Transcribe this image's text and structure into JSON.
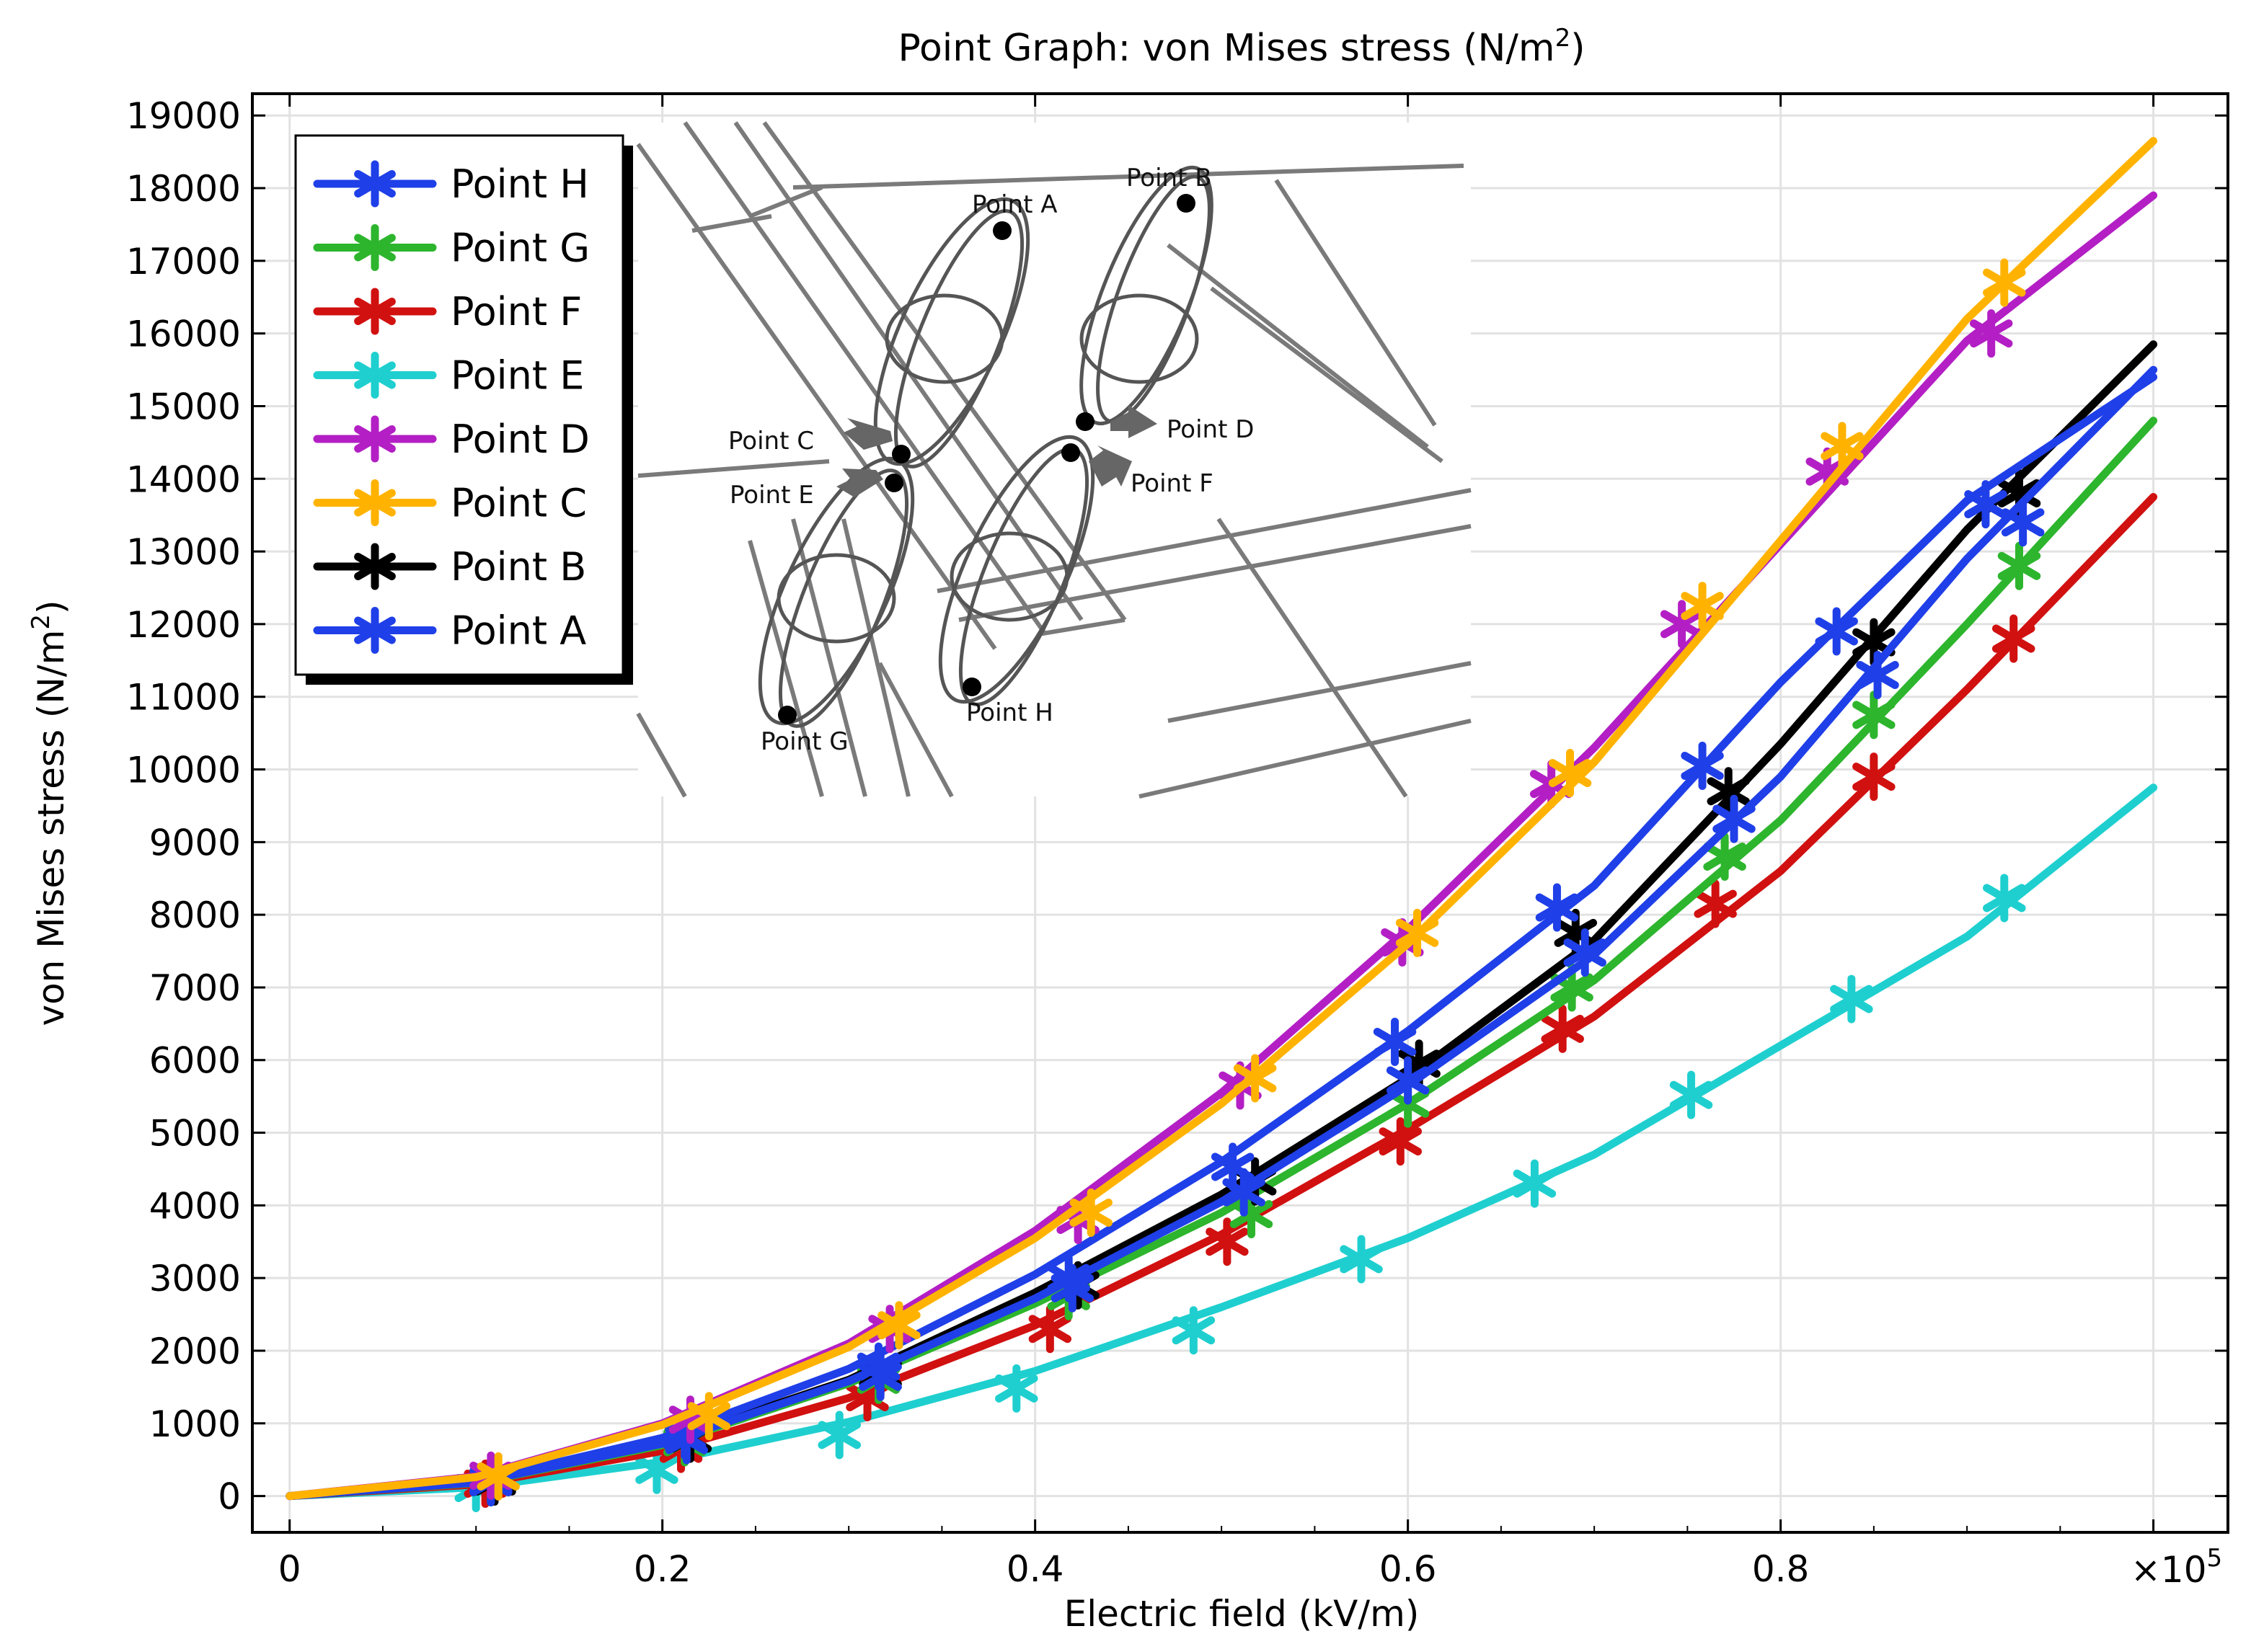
{
  "chart_data": {
    "type": "line",
    "title_prefix": "Point Graph: von Mises stress (N/m",
    "title_sup": "2",
    "title_suffix": ")",
    "xlabel": "Electric field (kV/m)",
    "ylabel_prefix": "von Mises stress (N/m",
    "ylabel_sup": "2",
    "ylabel_suffix": ")",
    "x_multiplier_base": "×10",
    "x_multiplier_exp": "5",
    "xlim": [
      -0.02,
      1.04
    ],
    "ylim": [
      -500,
      19300
    ],
    "xticks": [
      0,
      0.2,
      0.4,
      0.6,
      0.8,
      1.0
    ],
    "xtick_labels": [
      "0",
      "0.2",
      "0.4",
      "0.6",
      "0.8",
      ""
    ],
    "yticks": [
      0,
      1000,
      2000,
      3000,
      4000,
      5000,
      6000,
      7000,
      8000,
      9000,
      10000,
      11000,
      12000,
      13000,
      14000,
      15000,
      16000,
      17000,
      18000,
      19000
    ],
    "grid": true,
    "legend_position": "top-left",
    "series": [
      {
        "name": "Point H",
        "color": "#1f3fe8",
        "x": [
          0,
          0.1,
          0.2,
          0.3,
          0.4,
          0.5,
          0.6,
          0.7,
          0.8,
          0.9,
          1.0
        ],
        "values": [
          0,
          200,
          800,
          1750,
          3050,
          4600,
          6400,
          8400,
          11200,
          13700,
          15400
        ],
        "markers_x": [
          0.108,
          0.212,
          0.316,
          0.418,
          0.506,
          0.593,
          0.68,
          0.758,
          0.83,
          0.91
        ],
        "markers_y": [
          210,
          830,
          1780,
          3000,
          4530,
          6250,
          8100,
          10050,
          11900,
          13650
        ]
      },
      {
        "name": "Point G",
        "color": "#2db52d",
        "x": [
          0,
          0.1,
          0.2,
          0.3,
          0.4,
          0.5,
          0.6,
          0.7,
          0.8,
          0.9,
          1.0
        ],
        "values": [
          0,
          180,
          700,
          1550,
          2650,
          3900,
          5400,
          7100,
          9300,
          12000,
          14800
        ],
        "markers_x": [
          0.108,
          0.212,
          0.316,
          0.418,
          0.516,
          0.6,
          0.688,
          0.77,
          0.85,
          0.928
        ],
        "markers_y": [
          190,
          740,
          1600,
          2750,
          3880,
          5400,
          7000,
          8800,
          10750,
          12800
        ]
      },
      {
        "name": "Point F",
        "color": "#d11010",
        "x": [
          0,
          0.1,
          0.2,
          0.3,
          0.4,
          0.5,
          0.6,
          0.7,
          0.8,
          0.9,
          1.0
        ],
        "values": [
          0,
          160,
          620,
          1350,
          2350,
          3600,
          5050,
          6600,
          8600,
          11100,
          13750
        ],
        "markers_x": [
          0.105,
          0.21,
          0.31,
          0.408,
          0.503,
          0.596,
          0.683,
          0.765,
          0.85,
          0.925
        ],
        "markers_y": [
          170,
          650,
          1360,
          2300,
          3500,
          4880,
          6430,
          8150,
          9900,
          11800
        ]
      },
      {
        "name": "Point E",
        "color": "#1fcfcf",
        "x": [
          0,
          0.1,
          0.2,
          0.3,
          0.4,
          0.5,
          0.6,
          0.7,
          0.8,
          0.9,
          1.0
        ],
        "values": [
          0,
          120,
          470,
          1020,
          1720,
          2600,
          3550,
          4700,
          6200,
          7700,
          9750
        ],
        "markers_x": [
          0.1,
          0.197,
          0.295,
          0.39,
          0.485,
          0.575,
          0.668,
          0.752,
          0.838,
          0.92
        ],
        "markers_y": [
          110,
          360,
          840,
          1480,
          2280,
          3260,
          4300,
          5520,
          6840,
          8230
        ]
      },
      {
        "name": "Point D",
        "color": "#b31fc4",
        "x": [
          0,
          0.1,
          0.2,
          0.3,
          0.4,
          0.5,
          0.6,
          0.7,
          0.8,
          0.9,
          1.0
        ],
        "values": [
          0,
          270,
          1000,
          2100,
          3650,
          5550,
          7800,
          10300,
          13100,
          15900,
          17900
        ],
        "markers_x": [
          0.108,
          0.215,
          0.322,
          0.423,
          0.51,
          0.597,
          0.677,
          0.747,
          0.825,
          0.913
        ],
        "markers_y": [
          280,
          1050,
          2300,
          3800,
          5650,
          7620,
          9800,
          12000,
          14100,
          16000
        ]
      },
      {
        "name": "Point C",
        "color": "#ffb300",
        "x": [
          0,
          0.1,
          0.2,
          0.3,
          0.4,
          0.5,
          0.6,
          0.7,
          0.8,
          0.9,
          1.0
        ],
        "values": [
          0,
          260,
          980,
          2050,
          3550,
          5400,
          7600,
          10100,
          13150,
          16200,
          18650
        ],
        "markers_x": [
          0.112,
          0.225,
          0.327,
          0.43,
          0.518,
          0.605,
          0.687,
          0.758,
          0.833,
          0.92
        ],
        "markers_y": [
          270,
          1100,
          2350,
          3900,
          5750,
          7750,
          9950,
          12250,
          14450,
          16700
        ]
      },
      {
        "name": "Point B",
        "color": "#000000",
        "x": [
          0,
          0.1,
          0.2,
          0.3,
          0.4,
          0.5,
          0.6,
          0.7,
          0.8,
          0.9,
          1.0
        ],
        "values": [
          0,
          190,
          740,
          1600,
          2800,
          4150,
          5750,
          7650,
          10350,
          13300,
          15850
        ],
        "markers_x": [
          0.11,
          0.215,
          0.317,
          0.423,
          0.518,
          0.606,
          0.69,
          0.772,
          0.85,
          0.928
        ],
        "markers_y": [
          200,
          790,
          1680,
          2900,
          4330,
          5950,
          7750,
          9700,
          11750,
          13800
        ]
      },
      {
        "name": "Point A",
        "color": "#1f3fe8",
        "x": [
          0,
          0.1,
          0.2,
          0.3,
          0.4,
          0.5,
          0.6,
          0.7,
          0.8,
          0.9,
          1.0
        ],
        "values": [
          0,
          185,
          720,
          1580,
          2720,
          4050,
          5650,
          7450,
          9900,
          12900,
          15500
        ],
        "markers_x": [
          0.108,
          0.213,
          0.317,
          0.42,
          0.512,
          0.6,
          0.695,
          0.775,
          0.852,
          0.93
        ],
        "markers_y": [
          190,
          770,
          1640,
          2860,
          4180,
          5720,
          7480,
          9320,
          11300,
          13400
        ]
      }
    ],
    "inset_labels": [
      "Point A",
      "Point B",
      "Point C",
      "Point D",
      "Point E",
      "Point F",
      "Point G",
      "Point H"
    ]
  }
}
